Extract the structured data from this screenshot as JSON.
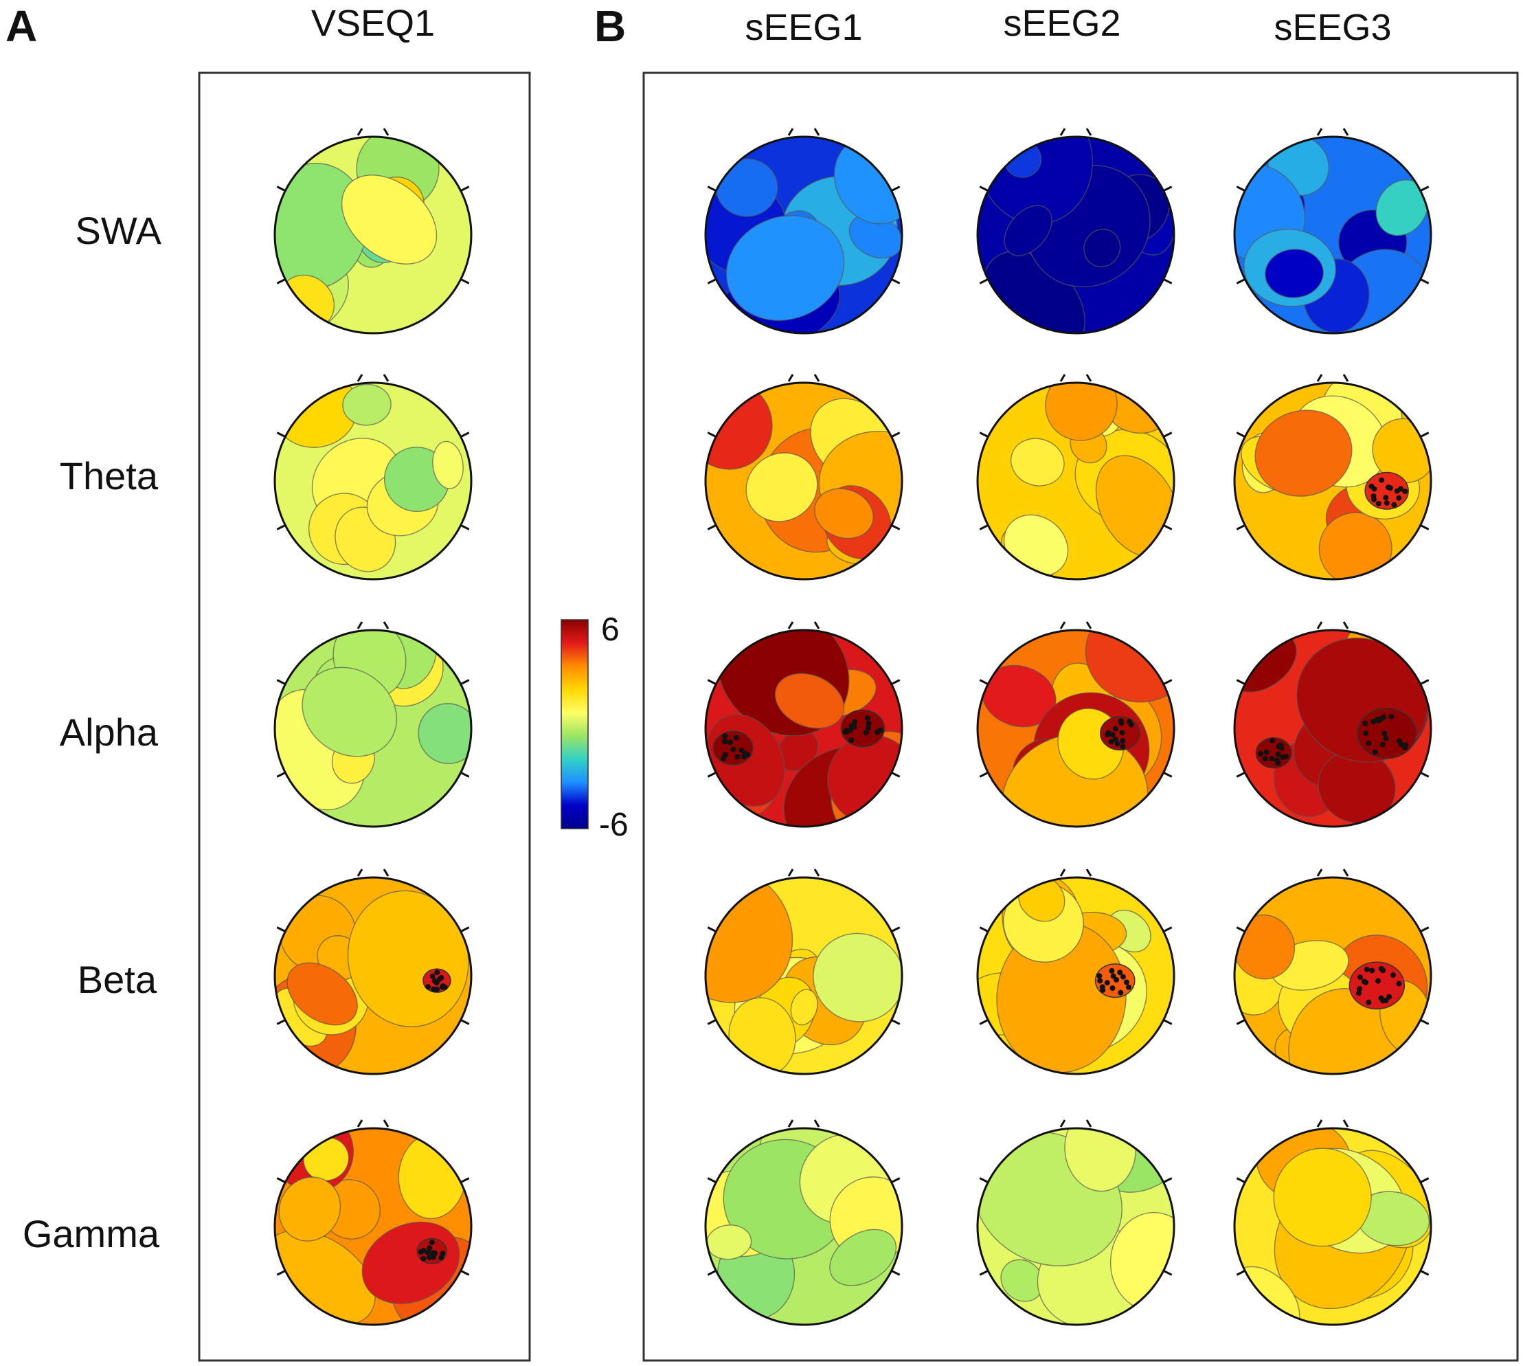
{
  "panels": [
    {
      "letter": "A",
      "columns": [
        "VSEQ1"
      ]
    },
    {
      "letter": "B",
      "columns": [
        "sEEG1",
        "sEEG2",
        "sEEG3"
      ]
    }
  ],
  "rows": [
    "SWA",
    "Theta",
    "Alpha",
    "Beta",
    "Gamma"
  ],
  "colorbar": {
    "max_label": "6",
    "min_label": "-6",
    "max": 6,
    "min": -6,
    "colors": [
      "#8b0000",
      "#e31a1c",
      "#ff8c00",
      "#ffd700",
      "#ffff66",
      "#9be564",
      "#33d1c4",
      "#1e90ff",
      "#0000c8",
      "#00008b"
    ]
  },
  "maps": [
    [
      0.05,
      -0.7,
      -0.9,
      -0.6
    ],
    [
      0.05,
      0.45,
      0.35,
      0.4
    ],
    [
      -0.05,
      0.8,
      0.6,
      0.75
    ],
    [
      0.45,
      0.25,
      0.3,
      0.45
    ],
    [
      0.55,
      -0.05,
      0.05,
      0.25
    ]
  ],
  "significance": [
    [
      [],
      [],
      [],
      []
    ],
    [
      [],
      [],
      [],
      [
        [
          0.55,
          0.1,
          0.22
        ]
      ]
    ],
    [
      [],
      [
        [
          -0.72,
          0.2,
          0.2
        ],
        [
          0.6,
          0.0,
          0.22
        ]
      ],
      [
        [
          0.45,
          0.05,
          0.2
        ]
      ],
      [
        [
          -0.6,
          0.25,
          0.18
        ],
        [
          0.55,
          0.05,
          0.3
        ]
      ]
    ],
    [
      [
        [
          0.65,
          0.05,
          0.14
        ]
      ],
      [],
      [
        [
          0.4,
          0.05,
          0.2
        ]
      ],
      [
        [
          0.45,
          0.1,
          0.28
        ]
      ]
    ],
    [
      [
        [
          0.6,
          0.25,
          0.15
        ]
      ],
      [],
      [],
      []
    ]
  ]
}
